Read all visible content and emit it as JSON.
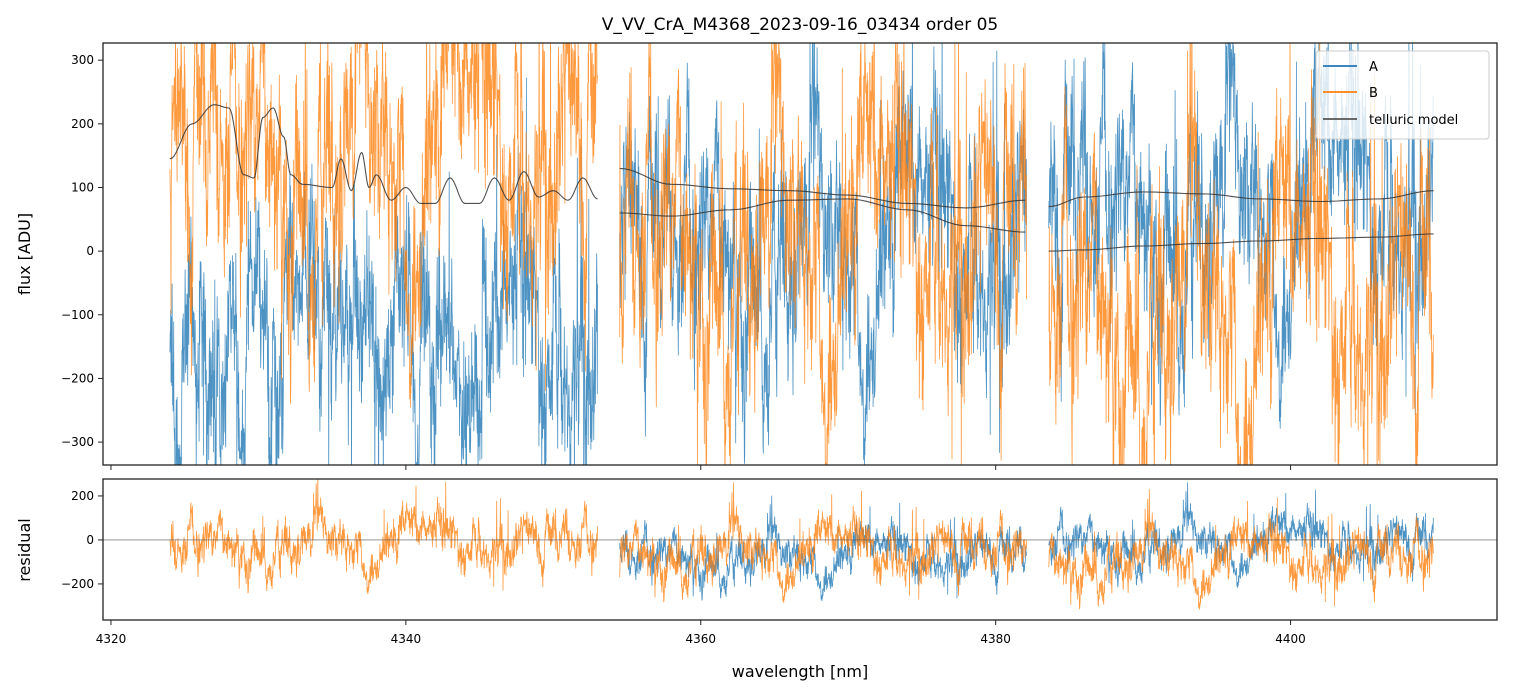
{
  "chart_data": {
    "type": "line",
    "title": "V_VV_CrA_M4368_2023-09-16_03434  order 05",
    "xlabel": "wavelength [nm]",
    "xlim": [
      4319.46,
      4414.0
    ],
    "x_ticks": [
      4320,
      4340,
      4360,
      4380,
      4400
    ],
    "colors": {
      "A": "#1f77b4",
      "B": "#ff7f0e",
      "model": "#333333"
    },
    "legend": {
      "placement": "top-right",
      "entries": [
        "A",
        "B",
        "telluric model"
      ]
    },
    "panels": [
      {
        "name": "flux",
        "ylabel": "flux [ADU]",
        "ylim": [
          -336,
          327
        ],
        "y_ticks": [
          300,
          200,
          100,
          0,
          -100,
          -200,
          -300
        ],
        "segments": [
          [
            4324.0,
            4353.0
          ],
          [
            4354.5,
            4382.1
          ],
          [
            4383.6,
            4409.7
          ]
        ],
        "series": [
          {
            "name": "A",
            "segment_means": [
              -150,
              0,
              60
            ],
            "noise": 120
          },
          {
            "name": "B",
            "segment_means": [
              150,
              10,
              -90
            ],
            "noise": 140
          }
        ],
        "telluric_model": [
          {
            "x": [
              4324,
              4325.5,
              4327,
              4328,
              4329,
              4329.7,
              4330.3,
              4331,
              4331.7,
              4332.2,
              4333,
              4335,
              4335.6,
              4336.3,
              4337,
              4337.5,
              4338,
              4339,
              4340,
              4341,
              4342,
              4343,
              4344,
              4345,
              4346,
              4347,
              4348,
              4349,
              4350,
              4351,
              4352,
              4353
            ],
            "y": [
              145,
              200,
              230,
              225,
              120,
              115,
              210,
              225,
              180,
              120,
              105,
              100,
              145,
              95,
              155,
              100,
              120,
              80,
              100,
              75,
              75,
              115,
              75,
              75,
              115,
              80,
              125,
              85,
              95,
              80,
              115,
              82
            ]
          },
          {
            "x": [
              4354.5,
              4358,
              4362,
              4366,
              4370,
              4374,
              4378,
              4382
            ],
            "y": [
              130,
              105,
              98,
              95,
              88,
              75,
              68,
              80
            ]
          },
          {
            "x": [
              4354.5,
              4358,
              4362,
              4366,
              4370,
              4374,
              4378,
              4382
            ],
            "y": [
              60,
              55,
              65,
              80,
              82,
              65,
              40,
              30
            ]
          },
          {
            "x": [
              4383.6,
              4386,
              4390,
              4394,
              4398,
              4402,
              4406,
              4409.7
            ],
            "y": [
              70,
              85,
              93,
              90,
              82,
              78,
              82,
              95
            ]
          },
          {
            "x": [
              4383.6,
              4386,
              4390,
              4394,
              4398,
              4402,
              4406,
              4409.7
            ],
            "y": [
              0,
              2,
              8,
              12,
              16,
              20,
              22,
              27
            ]
          }
        ]
      },
      {
        "name": "residual",
        "ylabel": "residual",
        "ylim": [
          -364,
          277
        ],
        "y_ticks": [
          200,
          0,
          -200
        ],
        "series": [
          {
            "name": "A",
            "segment_means": [
              null,
              -80,
              -20
            ],
            "noise": 70
          },
          {
            "name": "B",
            "segment_means": [
              -20,
              -60,
              -90
            ],
            "noise": 80
          }
        ]
      }
    ]
  }
}
